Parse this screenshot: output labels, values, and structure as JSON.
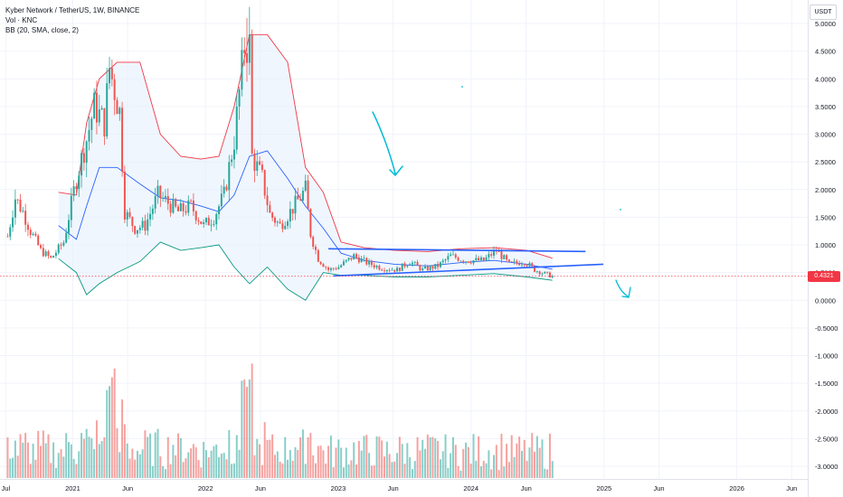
{
  "header": {
    "symbol_line": "Kyber Network / TetherUS, 1W, BINANCE",
    "volume_line": "Vol · KNC",
    "bb_line": "BB (20, SMA, close, 2)"
  },
  "currency_button": "USDT",
  "last_price": {
    "label": "0.4321",
    "value": 0.4321,
    "color": "#f23645"
  },
  "colors": {
    "up": "#26a69a",
    "down": "#ef5350",
    "bb_upper": "#f23645",
    "bb_lower": "#089981",
    "bb_basis": "#2962ff",
    "bb_fill": "#e3effd",
    "trendline": "#2962ff",
    "annotation": "#00bcd4"
  },
  "chart_data": {
    "type": "candlestick",
    "title": "Kyber Network / TetherUS, 1W, BINANCE",
    "ylim": [
      -3.2,
      5.2
    ],
    "y_ticks": [
      5.0,
      4.5,
      4.0,
      3.5,
      3.0,
      2.5,
      2.0,
      1.5,
      1.0,
      0.5,
      0.0,
      -0.5,
      -1.0,
      -1.5,
      -2.0,
      -2.5,
      -3.0
    ],
    "y_tick_labels": [
      "5.0000",
      "4.5000",
      "4.0000",
      "3.5000",
      "3.0000",
      "2.5000",
      "2.0000",
      "1.5000",
      "1.0000",
      "0.5000",
      "0.0000",
      "-0.5000",
      "-1.0000",
      "-1.5000",
      "-2.0000",
      "-2.5000",
      "-3.0000"
    ],
    "x_ticks": [
      "2020-07-01",
      "2021-01-01",
      "2021-06-01",
      "2022-01-01",
      "2022-06-01",
      "2023-01-01",
      "2023-06-01",
      "2024-01-01",
      "2024-06-01",
      "2025-01-01",
      "2025-06-01",
      "2026-01-01",
      "2026-06-01"
    ],
    "x_tick_labels": [
      "Jul",
      "2021",
      "Jun",
      "2022",
      "Jun",
      "2023",
      "Jun",
      "2024",
      "Jun",
      "2025",
      "Jun",
      "2026",
      "Jun"
    ],
    "x_range": [
      "2020-06-15",
      "2026-07-15"
    ],
    "grid": true,
    "price_key_points": [
      {
        "date": "2020-07-06",
        "close": 1.15
      },
      {
        "date": "2020-07-27",
        "close": 1.85
      },
      {
        "date": "2020-08-17",
        "close": 1.6
      },
      {
        "date": "2020-09-07",
        "close": 1.25
      },
      {
        "date": "2020-10-05",
        "close": 0.9
      },
      {
        "date": "2020-11-02",
        "close": 0.75
      },
      {
        "date": "2020-12-07",
        "close": 1.05
      },
      {
        "date": "2021-01-11",
        "close": 2.2
      },
      {
        "date": "2021-02-08",
        "close": 2.9
      },
      {
        "date": "2021-03-01",
        "close": 3.5
      },
      {
        "date": "2021-03-29",
        "close": 3.2
      },
      {
        "date": "2021-04-12",
        "close": 4.2
      },
      {
        "date": "2021-05-10",
        "close": 3.4
      },
      {
        "date": "2021-05-24",
        "close": 1.6
      },
      {
        "date": "2021-06-21",
        "close": 1.3
      },
      {
        "date": "2021-07-19",
        "close": 1.35
      },
      {
        "date": "2021-08-23",
        "close": 1.9
      },
      {
        "date": "2021-09-13",
        "close": 1.8
      },
      {
        "date": "2021-10-18",
        "close": 1.6
      },
      {
        "date": "2021-11-22",
        "close": 1.7
      },
      {
        "date": "2021-12-27",
        "close": 1.35
      },
      {
        "date": "2022-01-24",
        "close": 1.5
      },
      {
        "date": "2022-02-21",
        "close": 1.9
      },
      {
        "date": "2022-03-21",
        "close": 2.9
      },
      {
        "date": "2022-04-18",
        "close": 4.6
      },
      {
        "date": "2022-05-02",
        "close": 4.6
      },
      {
        "date": "2022-05-09",
        "close": 2.6
      },
      {
        "date": "2022-06-06",
        "close": 2.2
      },
      {
        "date": "2022-06-27",
        "close": 1.55
      },
      {
        "date": "2022-07-25",
        "close": 1.35
      },
      {
        "date": "2022-08-22",
        "close": 1.6
      },
      {
        "date": "2022-10-03",
        "close": 2.0
      },
      {
        "date": "2022-10-17",
        "close": 1.2
      },
      {
        "date": "2022-11-07",
        "close": 0.75
      },
      {
        "date": "2022-12-05",
        "close": 0.55
      },
      {
        "date": "2023-01-02",
        "close": 0.6
      },
      {
        "date": "2023-02-13",
        "close": 0.8
      },
      {
        "date": "2023-03-20",
        "close": 0.68
      },
      {
        "date": "2023-05-01",
        "close": 0.58
      },
      {
        "date": "2023-06-12",
        "close": 0.55
      },
      {
        "date": "2023-07-17",
        "close": 0.7
      },
      {
        "date": "2023-08-21",
        "close": 0.55
      },
      {
        "date": "2023-10-02",
        "close": 0.62
      },
      {
        "date": "2023-11-06",
        "close": 0.8
      },
      {
        "date": "2023-12-18",
        "close": 0.72
      },
      {
        "date": "2024-02-05",
        "close": 0.72
      },
      {
        "date": "2024-03-11",
        "close": 0.9
      },
      {
        "date": "2024-04-15",
        "close": 0.65
      },
      {
        "date": "2024-05-27",
        "close": 0.7
      },
      {
        "date": "2024-06-24",
        "close": 0.55
      },
      {
        "date": "2024-07-22",
        "close": 0.48
      },
      {
        "date": "2024-08-12",
        "close": 0.43
      }
    ],
    "bollinger_bands": {
      "upper": [
        {
          "date": "2020-11-23",
          "value": 1.95
        },
        {
          "date": "2021-01-11",
          "value": 1.9
        },
        {
          "date": "2021-02-08",
          "value": 3.2
        },
        {
          "date": "2021-03-15",
          "value": 4.0
        },
        {
          "date": "2021-05-03",
          "value": 4.3
        },
        {
          "date": "2021-07-05",
          "value": 4.3
        },
        {
          "date": "2021-08-30",
          "value": 3.0
        },
        {
          "date": "2021-10-25",
          "value": 2.6
        },
        {
          "date": "2021-12-20",
          "value": 2.55
        },
        {
          "date": "2022-02-07",
          "value": 2.6
        },
        {
          "date": "2022-03-21",
          "value": 3.5
        },
        {
          "date": "2022-05-02",
          "value": 4.8
        },
        {
          "date": "2022-06-20",
          "value": 4.8
        },
        {
          "date": "2022-08-15",
          "value": 4.3
        },
        {
          "date": "2022-10-03",
          "value": 2.4
        },
        {
          "date": "2022-11-21",
          "value": 1.95
        },
        {
          "date": "2023-01-09",
          "value": 1.05
        },
        {
          "date": "2023-03-13",
          "value": 0.95
        },
        {
          "date": "2023-06-05",
          "value": 0.9
        },
        {
          "date": "2023-09-04",
          "value": 0.88
        },
        {
          "date": "2023-12-04",
          "value": 0.93
        },
        {
          "date": "2024-03-04",
          "value": 0.95
        },
        {
          "date": "2024-06-03",
          "value": 0.9
        },
        {
          "date": "2024-08-12",
          "value": 0.76
        }
      ],
      "basis": [
        {
          "date": "2020-11-23",
          "value": 1.35
        },
        {
          "date": "2021-01-11",
          "value": 1.1
        },
        {
          "date": "2021-02-08",
          "value": 1.7
        },
        {
          "date": "2021-03-15",
          "value": 2.4
        },
        {
          "date": "2021-05-03",
          "value": 2.4
        },
        {
          "date": "2021-07-05",
          "value": 2.1
        },
        {
          "date": "2021-08-30",
          "value": 1.85
        },
        {
          "date": "2021-10-25",
          "value": 1.8
        },
        {
          "date": "2021-12-20",
          "value": 1.7
        },
        {
          "date": "2022-02-07",
          "value": 1.6
        },
        {
          "date": "2022-03-21",
          "value": 1.9
        },
        {
          "date": "2022-05-02",
          "value": 2.6
        },
        {
          "date": "2022-06-20",
          "value": 2.7
        },
        {
          "date": "2022-08-15",
          "value": 2.2
        },
        {
          "date": "2022-10-03",
          "value": 1.7
        },
        {
          "date": "2022-11-21",
          "value": 1.3
        },
        {
          "date": "2023-01-09",
          "value": 0.85
        },
        {
          "date": "2023-03-13",
          "value": 0.72
        },
        {
          "date": "2023-06-05",
          "value": 0.65
        },
        {
          "date": "2023-09-04",
          "value": 0.62
        },
        {
          "date": "2023-12-04",
          "value": 0.68
        },
        {
          "date": "2024-03-04",
          "value": 0.72
        },
        {
          "date": "2024-06-03",
          "value": 0.65
        },
        {
          "date": "2024-08-12",
          "value": 0.56
        }
      ],
      "lower": [
        {
          "date": "2020-11-23",
          "value": 0.75
        },
        {
          "date": "2021-01-11",
          "value": 0.5
        },
        {
          "date": "2021-02-08",
          "value": 0.1
        },
        {
          "date": "2021-03-15",
          "value": 0.3
        },
        {
          "date": "2021-05-03",
          "value": 0.5
        },
        {
          "date": "2021-07-05",
          "value": 0.7
        },
        {
          "date": "2021-08-30",
          "value": 1.05
        },
        {
          "date": "2021-10-25",
          "value": 0.9
        },
        {
          "date": "2021-12-20",
          "value": 0.95
        },
        {
          "date": "2022-02-07",
          "value": 1.0
        },
        {
          "date": "2022-03-21",
          "value": 0.6
        },
        {
          "date": "2022-05-02",
          "value": 0.3
        },
        {
          "date": "2022-06-20",
          "value": 0.6
        },
        {
          "date": "2022-08-15",
          "value": 0.2
        },
        {
          "date": "2022-10-03",
          "value": 0.0
        },
        {
          "date": "2022-11-21",
          "value": 0.5
        },
        {
          "date": "2023-01-09",
          "value": 0.45
        },
        {
          "date": "2023-03-13",
          "value": 0.45
        },
        {
          "date": "2023-06-05",
          "value": 0.42
        },
        {
          "date": "2023-09-04",
          "value": 0.42
        },
        {
          "date": "2023-12-04",
          "value": 0.45
        },
        {
          "date": "2024-03-04",
          "value": 0.48
        },
        {
          "date": "2024-06-03",
          "value": 0.42
        },
        {
          "date": "2024-08-12",
          "value": 0.36
        }
      ]
    },
    "trendlines": [
      {
        "from": {
          "date": "2022-12-05",
          "value": 0.93
        },
        "to": {
          "date": "2024-11-11",
          "value": 0.88
        }
      },
      {
        "from": {
          "date": "2022-12-19",
          "value": 0.44
        },
        "to": {
          "date": "2024-12-30",
          "value": 0.65
        }
      }
    ]
  }
}
